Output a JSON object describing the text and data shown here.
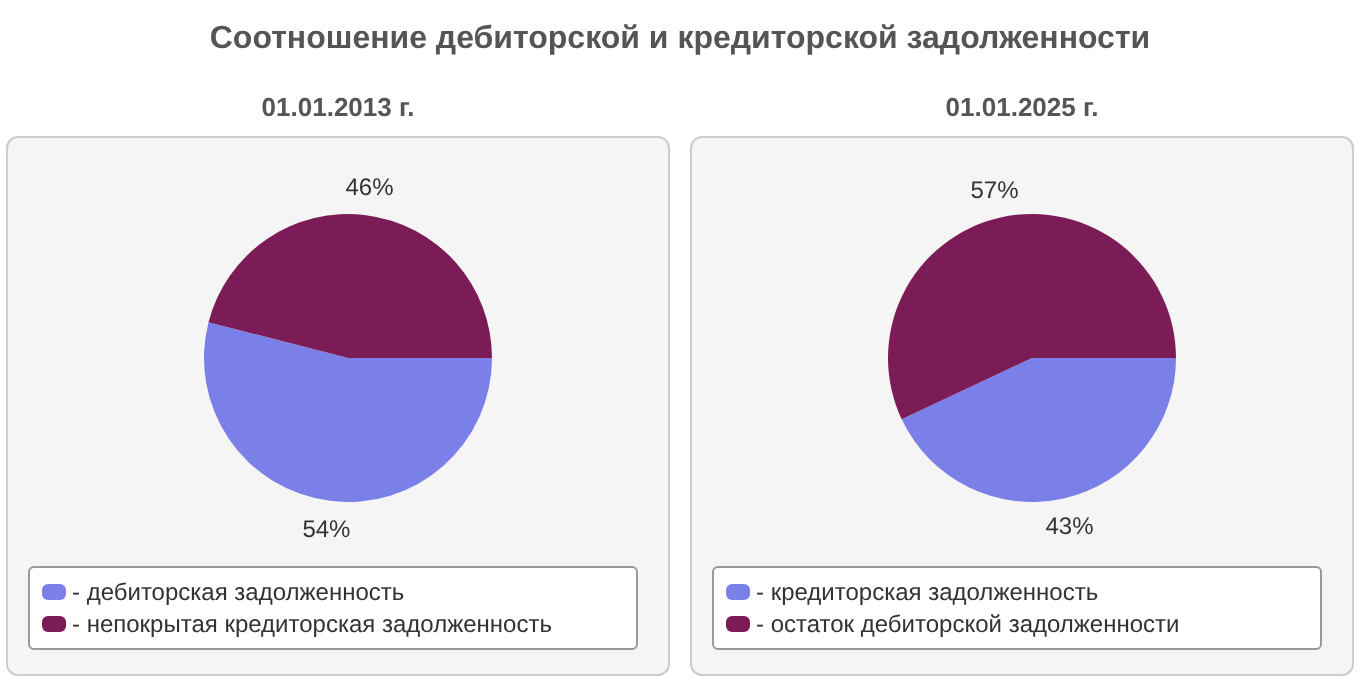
{
  "chart_data": [
    {
      "type": "pie",
      "title": "Соотношение дебиторской и кредиторской задолженности",
      "subtitle": "01.01.2013 г.",
      "categories": [
        "- дебиторская задолженность",
        "- непокрытая кредиторская задолженность"
      ],
      "values": [
        54,
        46
      ],
      "value_labels": [
        "54%",
        "46%"
      ],
      "colors": [
        "#7b7fe8",
        "#7b1c56"
      ],
      "legend": "bottom"
    },
    {
      "type": "pie",
      "subtitle": "01.01.2025 г.",
      "categories": [
        "- кредиторская задолженность",
        "- остаток дебиторской задолженности"
      ],
      "values": [
        43,
        57
      ],
      "value_labels": [
        "43%",
        "57%"
      ],
      "colors": [
        "#7b7fe8",
        "#7b1c56"
      ],
      "legend": "bottom"
    }
  ]
}
